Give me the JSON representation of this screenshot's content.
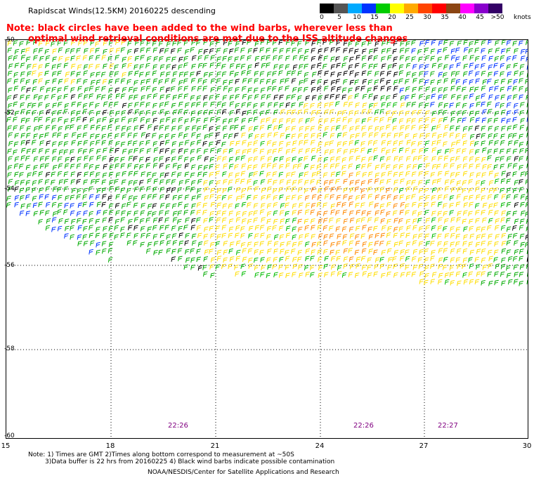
{
  "header": {
    "title": "Rapidscat Winds(12.5KM) 20160225 descending",
    "note_line1": "Note: black circles have been added to the wind barbs, wherever less than",
    "note_line2": "optimal wind retrieval conditions are met due to the ISS altitude changes"
  },
  "colorbar": {
    "labels": [
      "0",
      "5",
      "10",
      "15",
      "20",
      "25",
      "30",
      "35",
      "40",
      "45",
      ">50"
    ],
    "unit": "knots",
    "colors": [
      "#000000",
      "#555555",
      "#00aaff",
      "#0033ff",
      "#00cc00",
      "#ffff00",
      "#ffaa00",
      "#ff4400",
      "#ff0000",
      "#8b4513",
      "#ff00ff",
      "#8800cc",
      "#330066"
    ]
  },
  "map": {
    "lat_labels": [
      "-50",
      "-52",
      "-54",
      "-56",
      "-58",
      "-60"
    ],
    "lon_labels": [
      "15",
      "18",
      "21",
      "24",
      "27",
      "30"
    ],
    "time_labels": [
      "22:26",
      "22:26",
      "22:27"
    ],
    "lat_range": [
      -60,
      -50
    ],
    "lon_range": [
      15,
      30
    ]
  },
  "footer": {
    "line1": "Note: 1) Times are GMT 2)Times along bottom correspond to measurement at ~50S",
    "line2": "3)Data buffer is 22 hrs from 20160225 4) Black wind barbs indicate possible contamination",
    "credit": "NOAA/NESDIS/Center for Satellite Applications and Research"
  }
}
